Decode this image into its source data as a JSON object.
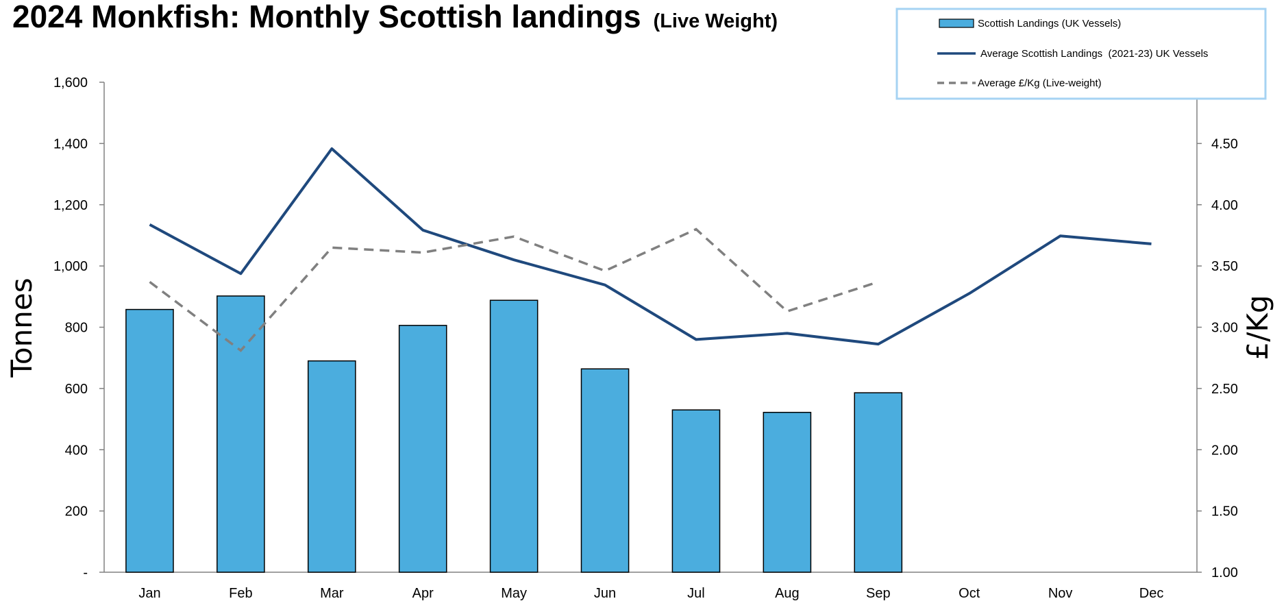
{
  "title": {
    "main": "2024 Monkfish: Monthly Scottish landings",
    "sub": "(Live Weight)"
  },
  "colors": {
    "bar": "#4badde",
    "bar_outline": "#000000",
    "avg_line": "#1f497d",
    "price_line": "#808080",
    "legend_border": "#a6d3f3",
    "axis": "#808080"
  },
  "chart_data": {
    "type": "bar",
    "categories": [
      "Jan",
      "Feb",
      "Mar",
      "Apr",
      "May",
      "Jun",
      "Jul",
      "Aug",
      "Sep",
      "Oct",
      "Nov",
      "Dec"
    ],
    "series": [
      {
        "name": "Scottish Landings (UK Vessels)",
        "type": "bar",
        "axis": "left",
        "values": [
          858,
          902,
          690,
          806,
          888,
          664,
          530,
          522,
          586,
          null,
          null,
          null
        ]
      },
      {
        "name": "Average Scottish Landings  (2021-23) UK Vessels",
        "type": "line",
        "axis": "left",
        "values": [
          1135,
          975,
          1383,
          1117,
          1020,
          938,
          760,
          780,
          745,
          910,
          1098,
          1072
        ]
      },
      {
        "name": "Average £/Kg (Live-weight)",
        "type": "line",
        "style": "dashed",
        "axis": "right",
        "values": [
          3.37,
          2.81,
          3.65,
          3.61,
          3.74,
          3.46,
          3.8,
          3.13,
          3.37,
          null,
          null,
          null
        ]
      }
    ],
    "ylabel": "Tonnes",
    "y2label": "£/Kg",
    "ylim": [
      0,
      1600
    ],
    "y2lim": [
      1.0,
      5.0
    ],
    "yticks": [
      "-",
      "200",
      "400",
      "600",
      "800",
      "1,000",
      "1,200",
      "1,400",
      "1,600"
    ],
    "y2ticks": [
      "1.00",
      "1.50",
      "2.00",
      "2.50",
      "3.00",
      "3.50",
      "4.00",
      "4.50"
    ],
    "grid": false,
    "legend": "top-right"
  }
}
